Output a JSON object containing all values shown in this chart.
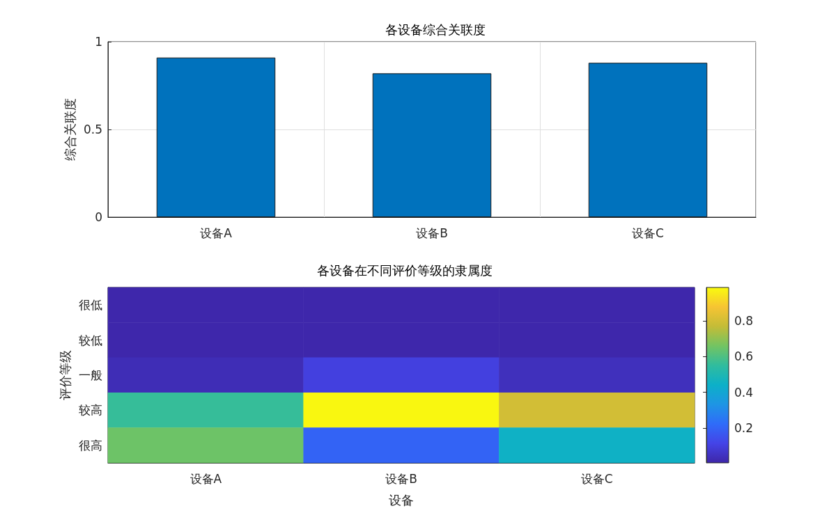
{
  "chart_data": [
    {
      "type": "bar",
      "title": "各设备综合关联度",
      "ylabel": "综合关联度",
      "categories": [
        "设备A",
        "设备B",
        "设备C"
      ],
      "values": [
        0.91,
        0.82,
        0.88
      ],
      "color": "#0072bd",
      "ylim": [
        0,
        1
      ],
      "yticks": [
        0,
        0.5,
        1
      ],
      "grid": true
    },
    {
      "type": "heatmap",
      "title": "各设备在不同评价等级的隶属度",
      "xlabel": "设备",
      "ylabel": "评价等级",
      "categories": [
        "设备A",
        "设备B",
        "设备C"
      ],
      "y_categories": [
        "很低",
        "较低",
        "一般",
        "较高",
        "很高"
      ],
      "cells": [
        [
          0.01,
          0.01,
          0.01
        ],
        [
          0.01,
          0.01,
          0.01
        ],
        [
          0.03,
          0.1,
          0.04
        ],
        [
          0.56,
          0.98,
          0.8
        ],
        [
          0.65,
          0.2,
          0.45
        ]
      ],
      "clim": [
        0.005,
        0.987
      ],
      "cticks": [
        0.2,
        0.4,
        0.6,
        0.8
      ]
    }
  ]
}
